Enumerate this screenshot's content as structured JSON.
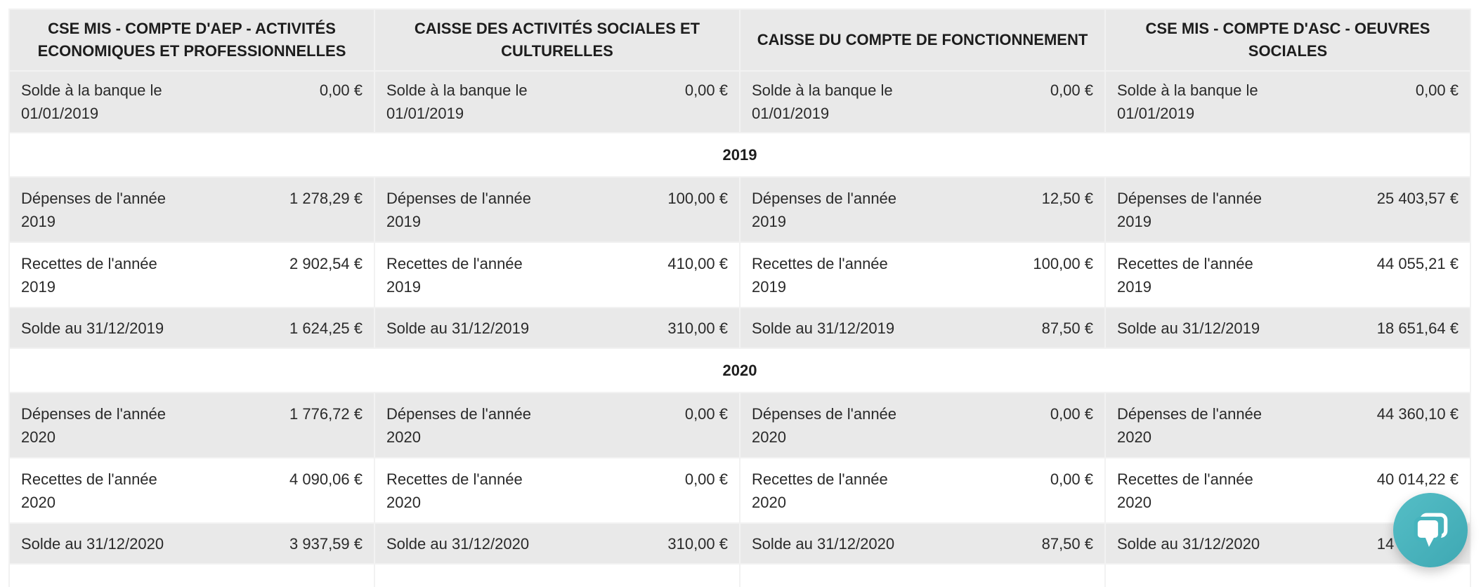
{
  "colors": {
    "row_shade": "#e9e9e9",
    "table_border": "#c9c9c9",
    "chat_widget_teal": "#45b4bd"
  },
  "table": {
    "columns": [
      {
        "header": "CSE MIS - COMPTE D'AEP - ACTIVITÉS ECONOMIQUES ET PROFESSIONNELLES"
      },
      {
        "header": "CAISSE DES ACTIVITÉS SOCIALES ET CULTURELLES"
      },
      {
        "header": "CAISSE DU COMPTE DE FONCTIONNEMENT"
      },
      {
        "header": "CSE MIS - COMPTE D'ASC - OEUVRES SOCIALES"
      }
    ],
    "opening_row": {
      "label": "Solde à la banque le 01/01/2019",
      "values": [
        "0,00 €",
        "0,00 €",
        "0,00 €",
        "0,00 €"
      ],
      "shaded": true,
      "tall": true
    },
    "sections": [
      {
        "year": "2019",
        "rows": [
          {
            "label": "Dépenses de l'année 2019",
            "values": [
              "1 278,29 €",
              "100,00 €",
              "12,50 €",
              "25 403,57 €"
            ],
            "shaded": true,
            "tall": true
          },
          {
            "label": "Recettes de l'année 2019",
            "values": [
              "2 902,54 €",
              "410,00 €",
              "100,00 €",
              "44 055,21 €"
            ],
            "shaded": false,
            "tall": true
          },
          {
            "label": "Solde au 31/12/2019",
            "values": [
              "1 624,25 €",
              "310,00 €",
              "87,50 €",
              "18 651,64 €"
            ],
            "shaded": true,
            "tall": false
          }
        ]
      },
      {
        "year": "2020",
        "rows": [
          {
            "label": "Dépenses de l'année 2020",
            "values": [
              "1 776,72 €",
              "0,00 €",
              "0,00 €",
              "44 360,10 €"
            ],
            "shaded": true,
            "tall": true
          },
          {
            "label": "Recettes de l'année 2020",
            "values": [
              "4 090,06 €",
              "0,00 €",
              "0,00 €",
              "40 014,22 €"
            ],
            "shaded": false,
            "tall": true
          },
          {
            "label": "Solde au 31/12/2020",
            "values": [
              "3 937,59 €",
              "310,00 €",
              "87,50 €",
              "14 305,76 €"
            ],
            "shaded": true,
            "tall": false
          }
        ]
      }
    ]
  },
  "chat": {
    "icon": "chat-bubble-icon"
  }
}
